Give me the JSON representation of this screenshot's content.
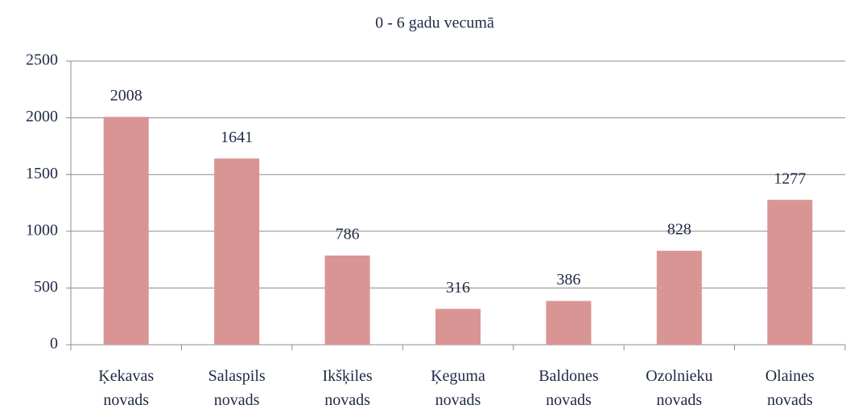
{
  "chart_data": {
    "type": "bar",
    "title": "0 - 6 gadu vecumā",
    "categories": [
      "Ķekavas novads",
      "Salaspils novads",
      "Ikšķiles novads",
      "Ķeguma novads",
      "Baldones novads",
      "Ozolnieku novads",
      "Olaines novads"
    ],
    "values": [
      2008,
      1641,
      786,
      316,
      386,
      828,
      1277
    ],
    "color": "#d99594",
    "ylim": [
      0,
      2500
    ],
    "yticks": [
      0,
      500,
      1000,
      1500,
      2000,
      2500
    ],
    "grid": true
  }
}
